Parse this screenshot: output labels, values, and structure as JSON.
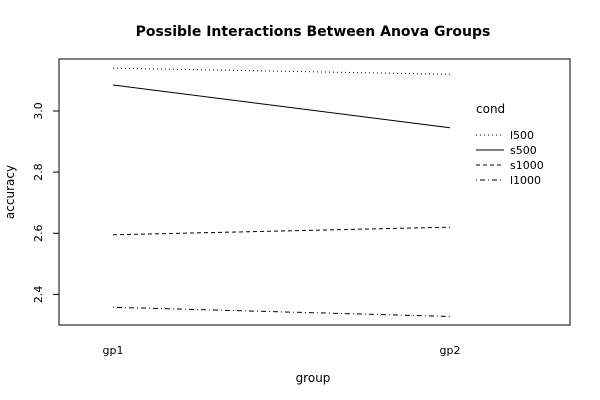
{
  "chart_data": {
    "type": "line",
    "title": "Possible Interactions Between Anova Groups",
    "xlabel": "group",
    "ylabel": "accuracy",
    "categories": [
      "gp1",
      "gp2"
    ],
    "ylim": [
      2.3,
      3.17
    ],
    "yticks": [
      2.4,
      2.6,
      2.8,
      3.0
    ],
    "ytick_labels": [
      "2.4",
      "2.6",
      "2.8",
      "3.0"
    ],
    "legend": {
      "title": "cond",
      "placement": "top-right"
    },
    "series": [
      {
        "name": "l500",
        "values": [
          3.14,
          3.12
        ],
        "line_style": "dotted"
      },
      {
        "name": "s500",
        "values": [
          3.085,
          2.945
        ],
        "line_style": "solid"
      },
      {
        "name": "s1000",
        "values": [
          2.595,
          2.62
        ],
        "line_style": "dashed"
      },
      {
        "name": "l1000",
        "values": [
          2.358,
          2.328
        ],
        "line_style": "dotdash"
      }
    ]
  }
}
